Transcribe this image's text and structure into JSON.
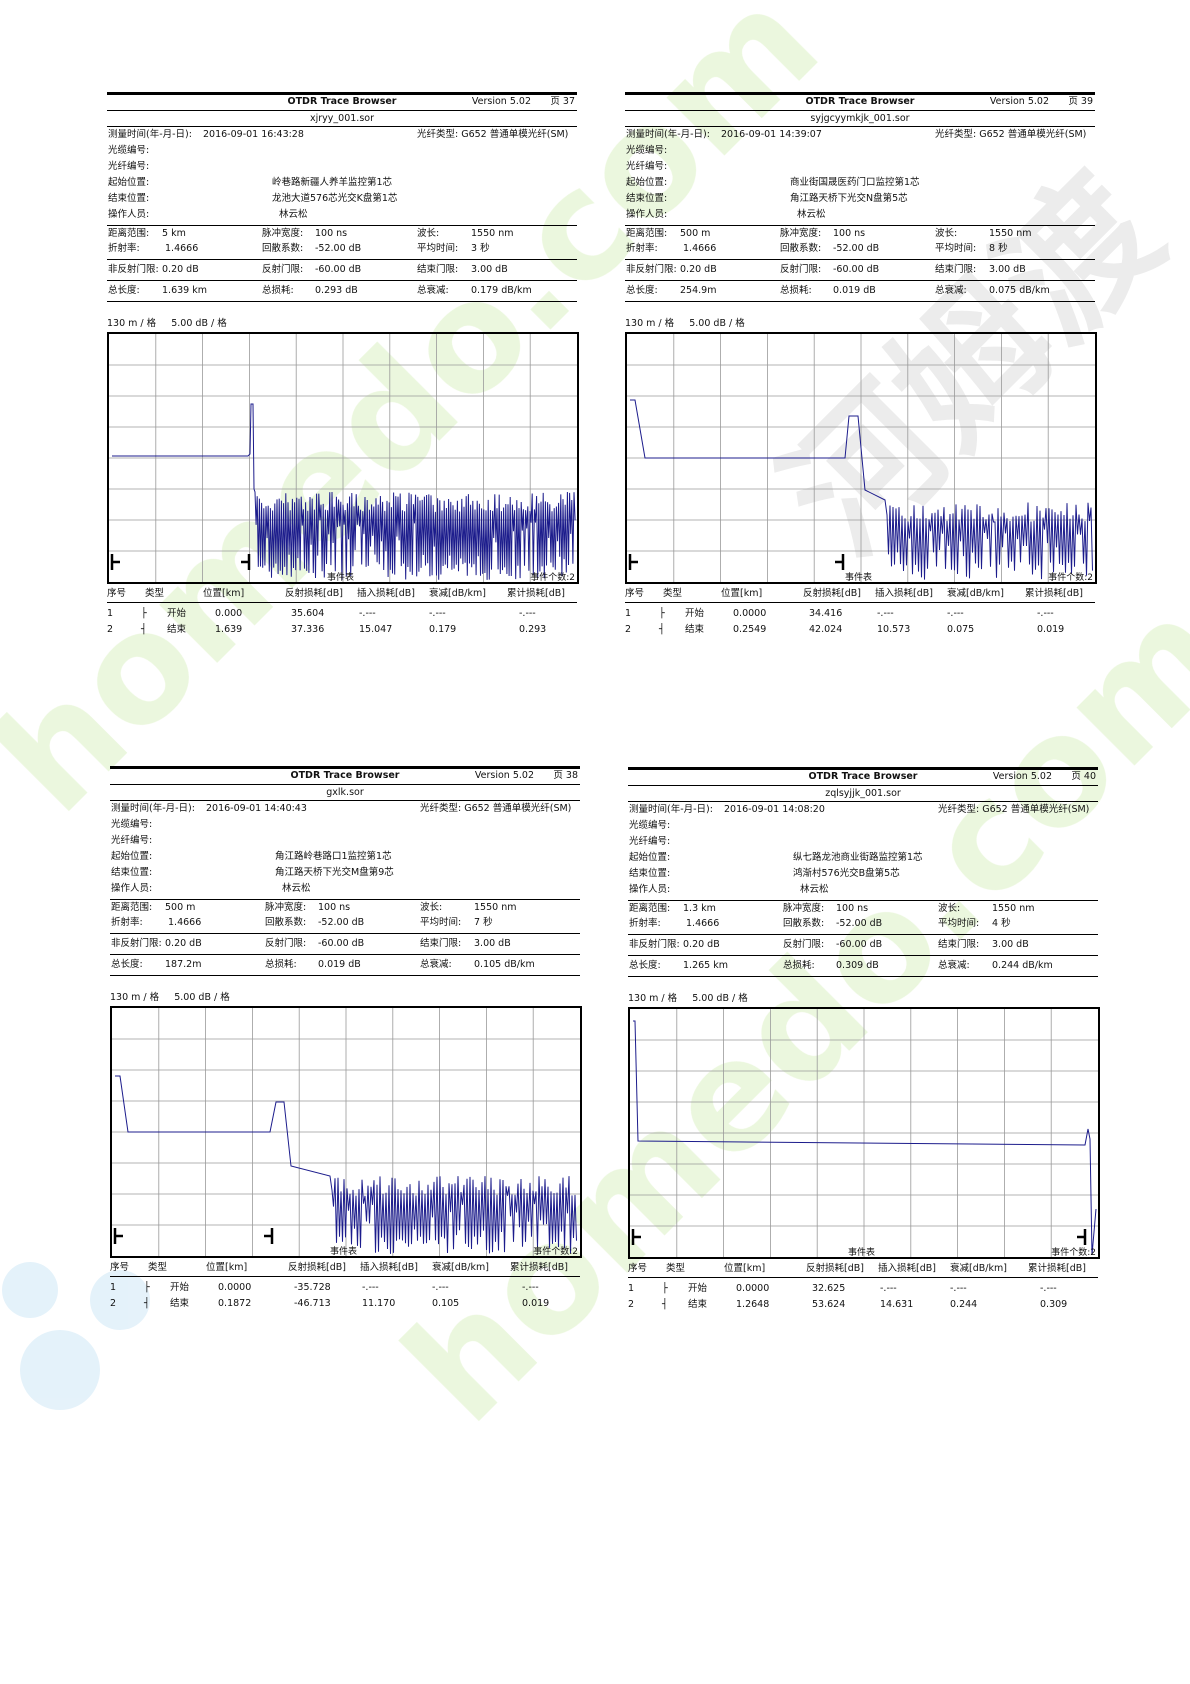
{
  "labels": {
    "app_title": "OTDR Trace Browser",
    "version": "Version 5.02",
    "page_prefix": "页",
    "measure_time": "测量时间(年-月-日):",
    "fiber_type": "光纤类型:",
    "cable_no": "光缆编号:",
    "fiber_no": "光纤编号:",
    "start_pos": "起始位置:",
    "end_pos": "结束位置:",
    "operator": "操作人员:",
    "range": "距离范围:",
    "pulse": "脉冲宽度:",
    "wavelength": "波长:",
    "ior": "折射率:",
    "backscatter": "回散系数:",
    "avg_time": "平均时间:",
    "nonrefl": "非反射门限:",
    "refl": "反射门限:",
    "end_thr": "结束门限:",
    "total_len": "总长度:",
    "total_loss": "总损耗:",
    "total_atten": "总衰减:",
    "event_table": "事件表",
    "event_count": "事件个数:2",
    "col_no": "序号",
    "col_type": "类型",
    "col_pos": "位置[km]",
    "col_refl": "反射损耗[dB]",
    "col_ins": "插入损耗[dB]",
    "col_att": "衰减[dB/km]",
    "col_cum": "累计损耗[dB]"
  },
  "reports": [
    {
      "page": "37",
      "file": "xjryy_001.sor",
      "datetime": "2016-09-01   16:43:28",
      "fiber_type": "G652 普通单模光纤(SM)",
      "start": "岭巷路新疆人养羊监控第1芯",
      "end": "龙池大道576芯光交K盘第1芯",
      "operator": "林云松",
      "range": "5 km",
      "pulse": "100 ns",
      "wavelength": "1550 nm",
      "ior": "1.4666",
      "backscatter": "-52.00 dB",
      "avg_time": "3 秒",
      "nonrefl": "0.20 dB",
      "refl": "-60.00 dB",
      "end_thr": "3.00 dB",
      "total_len": "1.639 km",
      "total_loss": "0.293 dB",
      "total_atten": "0.179 dB/km",
      "scale": "130 m / 格     5.00 dB / 格",
      "events": [
        {
          "no": "1",
          "name": "开始",
          "pos": "0.000",
          "refl": "35.604",
          "ins": "-.---",
          "att": "-.---",
          "cum": "-.---"
        },
        {
          "no": "2",
          "name": "结束",
          "pos": "1.639",
          "refl": "37.336",
          "ins": "15.047",
          "att": "0.179",
          "cum": "0.293"
        }
      ]
    },
    {
      "page": "39",
      "file": "syjgcyymkjk_001.sor",
      "datetime": "2016-09-01   14:39:07",
      "fiber_type": "G652 普通单模光纤(SM)",
      "start": "商业街国晟医药门口监控第1芯",
      "end": "角江路天桥下光交N盘第5芯",
      "operator": "林云松",
      "range": "500 m",
      "pulse": "100 ns",
      "wavelength": "1550 nm",
      "ior": "1.4666",
      "backscatter": "-52.00 dB",
      "avg_time": "8 秒",
      "nonrefl": "0.20 dB",
      "refl": "-60.00 dB",
      "end_thr": "3.00 dB",
      "total_len": "254.9m",
      "total_loss": "0.019 dB",
      "total_atten": "0.075 dB/km",
      "scale": "130 m / 格     5.00 dB / 格",
      "events": [
        {
          "no": "1",
          "name": "开始",
          "pos": "0.0000",
          "refl": "34.416",
          "ins": "-.---",
          "att": "-.---",
          "cum": "-.---"
        },
        {
          "no": "2",
          "name": "结束",
          "pos": "0.2549",
          "refl": "42.024",
          "ins": "10.573",
          "att": "0.075",
          "cum": "0.019"
        }
      ]
    },
    {
      "page": "38",
      "file": "gxlk.sor",
      "datetime": "2016-09-01   14:40:43",
      "fiber_type": "G652 普通单模光纤(SM)",
      "start": "角江路岭巷路口1监控第1芯",
      "end": "角江路天桥下光交M盘第9芯",
      "operator": "林云松",
      "range": "500 m",
      "pulse": "100 ns",
      "wavelength": "1550 nm",
      "ior": "1.4666",
      "backscatter": "-52.00 dB",
      "avg_time": "7 秒",
      "nonrefl": "0.20 dB",
      "refl": "-60.00 dB",
      "end_thr": "3.00 dB",
      "total_len": "187.2m",
      "total_loss": "0.019 dB",
      "total_atten": "0.105 dB/km",
      "scale": "130 m / 格     5.00 dB / 格",
      "events": [
        {
          "no": "1",
          "name": "开始",
          "pos": "0.0000",
          "refl": "-35.728",
          "ins": "-.---",
          "att": "-.---",
          "cum": "-.---"
        },
        {
          "no": "2",
          "name": "结束",
          "pos": "0.1872",
          "refl": "-46.713",
          "ins": "11.170",
          "att": "0.105",
          "cum": "0.019"
        }
      ]
    },
    {
      "page": "40",
      "file": "zqlsyjjk_001.sor",
      "datetime": "2016-09-01   14:08:20",
      "fiber_type": "G652 普通单模光纤(SM)",
      "start": "纵七路龙池商业街路监控第1芯",
      "end": "鸿渐村576光交B盘第5芯",
      "operator": "林云松",
      "range": "1.3 km",
      "pulse": "100 ns",
      "wavelength": "1550 nm",
      "ior": "1.4666",
      "backscatter": "-52.00 dB",
      "avg_time": "4 秒",
      "nonrefl": "0.20 dB",
      "refl": "-60.00 dB",
      "end_thr": "3.00 dB",
      "total_len": "1.265 km",
      "total_loss": "0.309 dB",
      "total_atten": "0.244 dB/km",
      "scale": "130 m / 格     5.00 dB / 格",
      "events": [
        {
          "no": "1",
          "name": "开始",
          "pos": "0.0000",
          "refl": "32.625",
          "ins": "-.---",
          "att": "-.---",
          "cum": "-.---"
        },
        {
          "no": "2",
          "name": "结束",
          "pos": "1.2648",
          "refl": "53.624",
          "ins": "14.631",
          "att": "0.244",
          "cum": "0.309"
        }
      ]
    }
  ],
  "trace_color": "#1c1c8c"
}
